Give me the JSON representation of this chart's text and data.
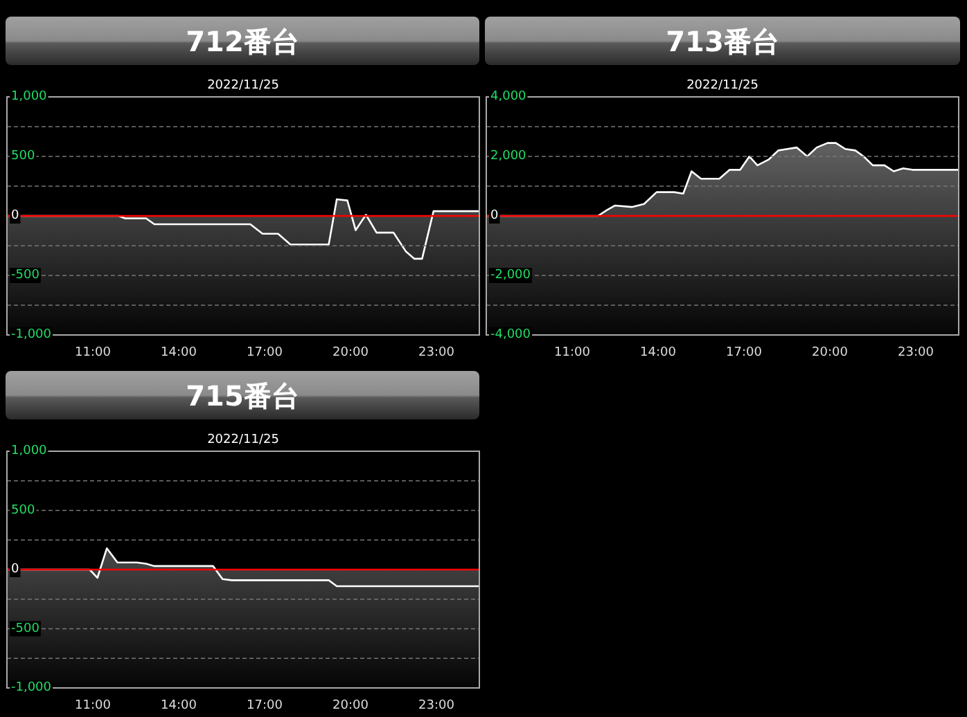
{
  "chart_data": [
    {
      "type": "area",
      "title": "712番台",
      "subtitle": "2022/11/25",
      "color": "#ffffff",
      "grid": "y",
      "marker": "none",
      "x": [
        8,
        11.9,
        12.13,
        12.86,
        13.15,
        16.5,
        16.93,
        17.47,
        17.9,
        19.24,
        19.52,
        19.89,
        20.18,
        20.54,
        20.91,
        21.5,
        21.94,
        22.23,
        22.5,
        22.9,
        24.5
      ],
      "values": [
        0,
        0,
        -20,
        -20,
        -70,
        -70,
        -150,
        -150,
        -240,
        -240,
        140,
        130,
        -120,
        10,
        -140,
        -140,
        -300,
        -360,
        -360,
        40,
        40
      ],
      "xlim": [
        8,
        24.5
      ],
      "xticks": [
        {
          "value": 11,
          "label": "11:00"
        },
        {
          "value": 14,
          "label": "14:00"
        },
        {
          "value": 17,
          "label": "17:00"
        },
        {
          "value": 20,
          "label": "20:00"
        },
        {
          "value": 23,
          "label": "23:00"
        }
      ],
      "ylim": [
        -1000,
        1000
      ],
      "yticks": [
        {
          "value": -1000,
          "label": "-1,000"
        },
        {
          "value": -750,
          "label": null
        },
        {
          "value": -500,
          "label": "-500"
        },
        {
          "value": -250,
          "label": null
        },
        {
          "value": 0,
          "label": "0"
        },
        {
          "value": 250,
          "label": null
        },
        {
          "value": 500,
          "label": "500"
        },
        {
          "value": 750,
          "label": null
        },
        {
          "value": 1000,
          "label": "1,000"
        }
      ],
      "ref_lines": [
        {
          "axis": "y",
          "value": 0,
          "color": "#ff0000"
        }
      ]
    },
    {
      "type": "area",
      "title": "713番台",
      "subtitle": "2022/11/25",
      "color": "#ffffff",
      "grid": "y",
      "marker": "none",
      "x": [
        8,
        11.9,
        12.22,
        12.5,
        13.1,
        13.51,
        13.95,
        14.56,
        14.88,
        15.17,
        15.5,
        16.14,
        16.5,
        16.87,
        17.19,
        17.47,
        17.87,
        18.2,
        18.52,
        18.84,
        19.21,
        19.54,
        19.92,
        20.21,
        20.54,
        20.89,
        21.18,
        21.5,
        21.91,
        22.23,
        22.56,
        22.88,
        24.5
      ],
      "values": [
        0,
        0,
        200,
        350,
        300,
        400,
        800,
        800,
        750,
        1500,
        1250,
        1250,
        1550,
        1550,
        2000,
        1700,
        1900,
        2200,
        2250,
        2300,
        2000,
        2300,
        2450,
        2450,
        2250,
        2200,
        2000,
        1700,
        1700,
        1500,
        1600,
        1550,
        1550
      ],
      "xlim": [
        8,
        24.5
      ],
      "xticks": [
        {
          "value": 11,
          "label": "11:00"
        },
        {
          "value": 14,
          "label": "14:00"
        },
        {
          "value": 17,
          "label": "17:00"
        },
        {
          "value": 20,
          "label": "20:00"
        },
        {
          "value": 23,
          "label": "23:00"
        }
      ],
      "ylim": [
        -4000,
        4000
      ],
      "yticks": [
        {
          "value": -4000,
          "label": "-4,000"
        },
        {
          "value": -3000,
          "label": null
        },
        {
          "value": -2000,
          "label": "-2,000"
        },
        {
          "value": -1000,
          "label": null
        },
        {
          "value": 0,
          "label": "0"
        },
        {
          "value": 1000,
          "label": null
        },
        {
          "value": 2000,
          "label": "2,000"
        },
        {
          "value": 3000,
          "label": null
        },
        {
          "value": 4000,
          "label": "4,000"
        }
      ],
      "ref_lines": [
        {
          "axis": "y",
          "value": 0,
          "color": "#ff0000"
        }
      ]
    },
    {
      "type": "area",
      "title": "715番台",
      "subtitle": "2022/11/25",
      "color": "#ffffff",
      "grid": "y",
      "marker": "none",
      "x": [
        8,
        10.89,
        11.16,
        11.49,
        11.86,
        12.54,
        12.86,
        13.15,
        15.2,
        15.53,
        15.85,
        19.24,
        19.52,
        24.5
      ],
      "values": [
        0,
        0,
        -70,
        180,
        60,
        60,
        50,
        30,
        30,
        -80,
        -90,
        -90,
        -140,
        -140
      ],
      "xlim": [
        8,
        24.5
      ],
      "xticks": [
        {
          "value": 11,
          "label": "11:00"
        },
        {
          "value": 14,
          "label": "14:00"
        },
        {
          "value": 17,
          "label": "17:00"
        },
        {
          "value": 20,
          "label": "20:00"
        },
        {
          "value": 23,
          "label": "23:00"
        }
      ],
      "ylim": [
        -1000,
        1000
      ],
      "yticks": [
        {
          "value": -1000,
          "label": "-1,000"
        },
        {
          "value": -750,
          "label": null
        },
        {
          "value": -500,
          "label": "-500"
        },
        {
          "value": -250,
          "label": null
        },
        {
          "value": 0,
          "label": "0"
        },
        {
          "value": 250,
          "label": null
        },
        {
          "value": 500,
          "label": "500"
        },
        {
          "value": 750,
          "label": null
        },
        {
          "value": 1000,
          "label": "1,000"
        }
      ],
      "ref_lines": [
        {
          "axis": "y",
          "value": 0,
          "color": "#ff0000"
        }
      ]
    }
  ]
}
